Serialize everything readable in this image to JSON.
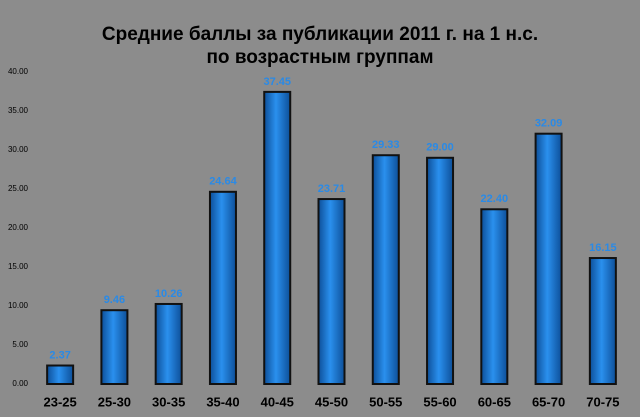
{
  "chart_data": {
    "type": "bar",
    "title": "Средние баллы за публикации 2011 г. на 1 н.с.",
    "subtitle": "по возрастным группам",
    "categories": [
      "23-25",
      "25-30",
      "30-35",
      "35-40",
      "40-45",
      "45-50",
      "50-55",
      "55-60",
      "60-65",
      "65-70",
      "70-75"
    ],
    "values": [
      2.37,
      9.46,
      10.26,
      24.64,
      37.45,
      23.71,
      29.33,
      29.0,
      22.4,
      32.09,
      16.15
    ],
    "value_labels": [
      "2.37",
      "9.46",
      "10.26",
      "24.64",
      "37.45",
      "23.71",
      "29.33",
      "29.00",
      "22.40",
      "32.09",
      "16.15"
    ],
    "color": "#1a7ad4",
    "ylim": [
      0,
      40
    ],
    "yticks": [
      {
        "value": 0,
        "label": "0.00"
      },
      {
        "value": 5,
        "label": "5.00"
      },
      {
        "value": 10,
        "label": "10.00"
      },
      {
        "value": 15,
        "label": "15.00"
      },
      {
        "value": 20,
        "label": "20.00"
      },
      {
        "value": 25,
        "label": "25.00"
      },
      {
        "value": 30,
        "label": "30.00"
      },
      {
        "value": 35,
        "label": "35.00"
      },
      {
        "value": 40,
        "label": "40.00"
      }
    ],
    "grid": false
  }
}
